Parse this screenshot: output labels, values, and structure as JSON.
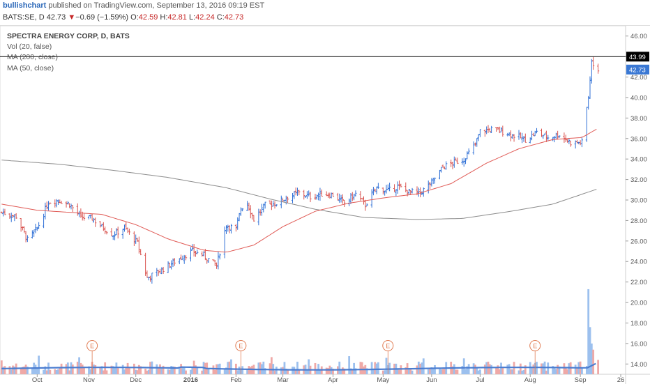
{
  "header": {
    "author": "bullishchart",
    "published_text": " published on TradingView.com, September 13, 2016 09:19 EST",
    "symbol_prefix": "BATS:SE, D",
    "last": "42.73",
    "change": "−0.69 (−1.59%)",
    "open_label": "O:",
    "open": "42.59",
    "high_label": "H:",
    "high": "42.81",
    "low_label": "L:",
    "low": "42.24",
    "close_label": "C:",
    "close": "42.73"
  },
  "legend": {
    "title": "SPECTRA ENERGY CORP, D, BATS",
    "vol": "Vol (20, false)",
    "ma200": "MA (200, close)",
    "ma50": "MA (50, close)"
  },
  "colors": {
    "up": "#2e6fd6",
    "down": "#d9534f",
    "vol_up": "#9cc0ee",
    "vol_down": "#efa9a7",
    "ma50": "#e05a55",
    "ma200": "#8c8c8c",
    "vol_ma": "#4a7cd0",
    "hline": "#000000",
    "last_badge": "#3a78d4",
    "earnings": "#e07a50"
  },
  "chart_data": {
    "type": "candlestick",
    "title": "SPECTRA ENERGY CORP, D, BATS",
    "ylim": [
      13,
      47
    ],
    "y_ticks": [
      "14.00",
      "16.00",
      "18.00",
      "20.00",
      "22.00",
      "24.00",
      "26.00",
      "28.00",
      "30.00",
      "32.00",
      "34.00",
      "36.00",
      "38.00",
      "40.00",
      "42.00",
      "44.00",
      "46.00"
    ],
    "x_ticks": [
      "Oct",
      "Nov",
      "Dec",
      "2016",
      "Feb",
      "Mar",
      "Apr",
      "May",
      "Jun",
      "Jul",
      "Aug",
      "Sep",
      "26"
    ],
    "horizontal_line": "43.99",
    "last_price": "42.73",
    "earnings_markers": [
      "E",
      "E",
      "E",
      "E"
    ],
    "price_anchors": [
      [
        "2015-09-09",
        28.8
      ],
      [
        "2015-09-18",
        28.4
      ],
      [
        "2015-09-25",
        26.1
      ],
      [
        "2015-10-01",
        27.2
      ],
      [
        "2015-10-08",
        29.8
      ],
      [
        "2015-10-14",
        30.0
      ],
      [
        "2015-10-21",
        29.6
      ],
      [
        "2015-10-28",
        28.3
      ],
      [
        "2015-11-04",
        28.2
      ],
      [
        "2015-11-10",
        27.4
      ],
      [
        "2015-11-17",
        26.6
      ],
      [
        "2015-11-24",
        27.3
      ],
      [
        "2015-12-02",
        25.8
      ],
      [
        "2015-12-08",
        22.4
      ],
      [
        "2015-12-14",
        22.9
      ],
      [
        "2015-12-21",
        23.6
      ],
      [
        "2015-12-28",
        24.3
      ],
      [
        "2016-01-05",
        25.0
      ],
      [
        "2016-01-12",
        24.6
      ],
      [
        "2016-01-20",
        23.6
      ],
      [
        "2016-01-26",
        27.6
      ],
      [
        "2016-02-01",
        27.1
      ],
      [
        "2016-02-04",
        29.2
      ],
      [
        "2016-02-08",
        29.7
      ],
      [
        "2016-02-12",
        28.1
      ],
      [
        "2016-02-19",
        29.5
      ],
      [
        "2016-02-26",
        29.7
      ],
      [
        "2016-03-04",
        30.3
      ],
      [
        "2016-03-11",
        30.7
      ],
      [
        "2016-03-18",
        30.3
      ],
      [
        "2016-03-25",
        30.6
      ],
      [
        "2016-04-01",
        30.5
      ],
      [
        "2016-04-08",
        29.7
      ],
      [
        "2016-04-15",
        30.6
      ],
      [
        "2016-04-21",
        29.5
      ],
      [
        "2016-04-28",
        31.2
      ],
      [
        "2016-05-05",
        30.9
      ],
      [
        "2016-05-11",
        31.3
      ],
      [
        "2016-05-18",
        30.8
      ],
      [
        "2016-05-25",
        30.7
      ],
      [
        "2016-06-01",
        31.7
      ],
      [
        "2016-06-08",
        33.2
      ],
      [
        "2016-06-14",
        33.6
      ],
      [
        "2016-06-21",
        34.0
      ],
      [
        "2016-06-28",
        35.4
      ],
      [
        "2016-07-01",
        36.7
      ],
      [
        "2016-07-08",
        36.9
      ],
      [
        "2016-07-15",
        36.7
      ],
      [
        "2016-07-22",
        36.3
      ],
      [
        "2016-07-29",
        35.9
      ],
      [
        "2016-08-05",
        36.6
      ],
      [
        "2016-08-12",
        36.1
      ],
      [
        "2016-08-19",
        36.4
      ],
      [
        "2016-08-26",
        35.6
      ],
      [
        "2016-09-02",
        35.6
      ],
      [
        "2016-09-06",
        40.1
      ],
      [
        "2016-09-08",
        43.5
      ],
      [
        "2016-09-12",
        42.73
      ]
    ],
    "ma50_anchors": [
      [
        "2015-09-09",
        29.6
      ],
      [
        "2015-10-01",
        29.0
      ],
      [
        "2015-10-21",
        28.8
      ],
      [
        "2015-11-10",
        28.6
      ],
      [
        "2015-12-01",
        27.6
      ],
      [
        "2015-12-21",
        26.2
      ],
      [
        "2016-01-12",
        25.1
      ],
      [
        "2016-01-26",
        24.9
      ],
      [
        "2016-02-12",
        25.6
      ],
      [
        "2016-03-01",
        27.4
      ],
      [
        "2016-03-21",
        28.9
      ],
      [
        "2016-04-11",
        29.7
      ],
      [
        "2016-05-02",
        30.2
      ],
      [
        "2016-05-23",
        30.6
      ],
      [
        "2016-06-13",
        31.6
      ],
      [
        "2016-07-05",
        33.6
      ],
      [
        "2016-07-25",
        35.0
      ],
      [
        "2016-08-15",
        35.9
      ],
      [
        "2016-09-02",
        36.1
      ],
      [
        "2016-09-12",
        37.0
      ]
    ],
    "ma200_anchors": [
      [
        "2015-09-09",
        33.9
      ],
      [
        "2015-10-14",
        33.5
      ],
      [
        "2015-11-17",
        32.9
      ],
      [
        "2015-12-21",
        32.2
      ],
      [
        "2016-01-26",
        31.2
      ],
      [
        "2016-02-22",
        30.1
      ],
      [
        "2016-03-21",
        29.1
      ],
      [
        "2016-04-20",
        28.3
      ],
      [
        "2016-05-23",
        28.1
      ],
      [
        "2016-06-20",
        28.2
      ],
      [
        "2016-07-20",
        28.9
      ],
      [
        "2016-08-15",
        29.6
      ],
      [
        "2016-09-12",
        31.1
      ]
    ],
    "volume_spike": [
      [
        "2016-09-06",
        21.3
      ],
      [
        "2016-09-07",
        17.6
      ],
      [
        "2016-09-08",
        16.0
      ],
      [
        "2016-09-09",
        15.4
      ],
      [
        "2016-09-12",
        14.4
      ]
    ]
  }
}
